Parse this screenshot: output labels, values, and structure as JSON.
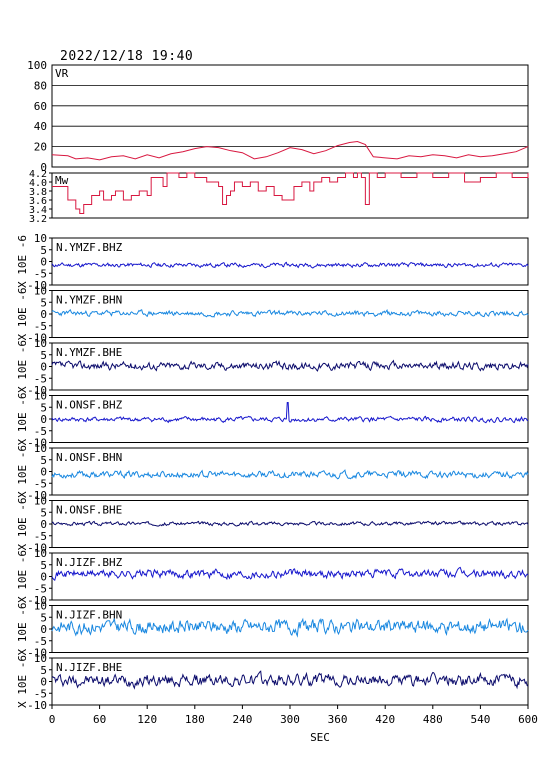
{
  "header": {
    "datetime": "2022/12/18  19:40"
  },
  "chart_data": {
    "type": "line",
    "xlabel": "SEC",
    "xlim": [
      0,
      600
    ],
    "xticks": [
      "0",
      "60",
      "120",
      "180",
      "240",
      "300",
      "360",
      "420",
      "480",
      "540",
      "600"
    ],
    "vr_panel": {
      "label": "VR",
      "ylim": [
        0,
        100
      ],
      "yticks": [
        "0",
        "20",
        "40",
        "60",
        "80",
        "100"
      ],
      "grid": true,
      "color": "#d81840",
      "x": [
        0,
        20,
        30,
        45,
        60,
        75,
        90,
        105,
        120,
        135,
        150,
        165,
        180,
        195,
        210,
        225,
        240,
        255,
        270,
        285,
        300,
        315,
        330,
        345,
        360,
        375,
        385,
        395,
        405,
        420,
        435,
        450,
        465,
        480,
        495,
        510,
        525,
        540,
        555,
        570,
        585,
        600
      ],
      "values": [
        12,
        11,
        8,
        9,
        7,
        10,
        11,
        8,
        12,
        9,
        13,
        15,
        18,
        20,
        19,
        16,
        14,
        8,
        10,
        14,
        19,
        17,
        13,
        16,
        21,
        24,
        25,
        22,
        10,
        9,
        8,
        11,
        10,
        12,
        11,
        9,
        12,
        10,
        11,
        13,
        15,
        20
      ]
    },
    "mw_panel": {
      "label": "Mw",
      "ylim": [
        3.2,
        4.2
      ],
      "yticks": [
        "3.2",
        "3.4",
        "3.6",
        "3.8",
        "4.0",
        "4.2"
      ],
      "color": "#d81840",
      "x": [
        0,
        20,
        30,
        35,
        40,
        50,
        60,
        65,
        75,
        80,
        90,
        100,
        110,
        120,
        125,
        135,
        140,
        145,
        150,
        160,
        170,
        180,
        195,
        210,
        215,
        220,
        225,
        230,
        240,
        250,
        260,
        270,
        280,
        290,
        300,
        305,
        315,
        325,
        330,
        340,
        350,
        360,
        370,
        380,
        385,
        390,
        395,
        400,
        410,
        420,
        440,
        460,
        480,
        500,
        520,
        540,
        560,
        580,
        600
      ],
      "values": [
        3.9,
        3.6,
        3.4,
        3.3,
        3.5,
        3.7,
        3.8,
        3.6,
        3.7,
        3.8,
        3.6,
        3.7,
        3.8,
        3.7,
        4.1,
        4.1,
        3.9,
        4.2,
        4.2,
        4.1,
        4.2,
        4.1,
        4.0,
        3.9,
        3.5,
        3.7,
        3.8,
        4.0,
        3.9,
        4.0,
        3.8,
        3.9,
        3.7,
        3.6,
        3.6,
        3.9,
        4.0,
        3.8,
        4.0,
        4.1,
        4.0,
        4.1,
        4.2,
        4.1,
        4.2,
        4.1,
        3.5,
        4.2,
        4.1,
        4.2,
        4.1,
        4.2,
        4.1,
        4.2,
        4.0,
        4.1,
        4.2,
        4.1,
        4.2
      ]
    },
    "waveform_yticks": [
      "10",
      "5",
      "0",
      "-5",
      "-10"
    ],
    "waveform_ylim": [
      -10,
      10
    ],
    "waveform_unit_label": "X 10E -6",
    "waveforms": [
      {
        "station": "N.YMZF.BHZ",
        "color": "#1818cc",
        "offset": -1.5,
        "amplitude": 0.7,
        "seed": 11
      },
      {
        "station": "N.YMZF.BHN",
        "color": "#1a88e0",
        "offset": 0.3,
        "amplitude": 0.9,
        "seed": 23
      },
      {
        "station": "N.YMZF.BHE",
        "color": "#0c0c6c",
        "offset": 0.3,
        "amplitude": 1.3,
        "seed": 37
      },
      {
        "station": "N.ONSF.BHZ",
        "color": "#1818cc",
        "offset": -0.2,
        "amplitude": 0.8,
        "seed": 41,
        "spike_x": 297,
        "spike_value": 7
      },
      {
        "station": "N.ONSF.BHN",
        "color": "#1a88e0",
        "offset": -1.3,
        "amplitude": 1.1,
        "seed": 53
      },
      {
        "station": "N.ONSF.BHE",
        "color": "#0c0c6c",
        "offset": 0.2,
        "amplitude": 0.6,
        "seed": 67
      },
      {
        "station": "N.JIZF.BHZ",
        "color": "#1818cc",
        "offset": 1.2,
        "amplitude": 1.4,
        "seed": 71
      },
      {
        "station": "N.JIZF.BHN",
        "color": "#1a88e0",
        "offset": 1.0,
        "amplitude": 2.3,
        "seed": 83
      },
      {
        "station": "N.JIZF.BHE",
        "color": "#0c0c6c",
        "offset": 0.5,
        "amplitude": 2.0,
        "seed": 97
      }
    ]
  }
}
